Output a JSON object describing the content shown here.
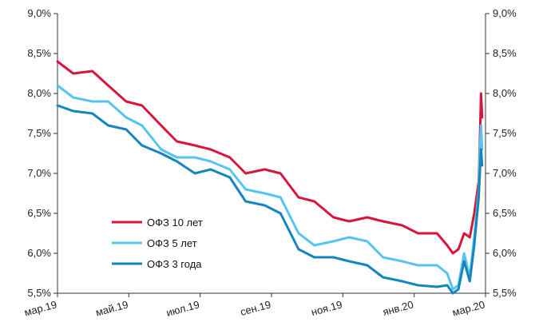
{
  "chart_data": {
    "type": "line",
    "title": "",
    "xlabel": "",
    "ylabel": "",
    "ylim": [
      5.5,
      9.0
    ],
    "yticks": [
      "9,0%",
      "8,5%",
      "8,0%",
      "7,5%",
      "7,0%",
      "6,5%",
      "6,0%",
      "5,5%"
    ],
    "ytick_values": [
      9.0,
      8.5,
      8.0,
      7.5,
      7.0,
      6.5,
      6.0,
      5.5
    ],
    "secondary_y_axis": true,
    "xticks": [
      "мар.19",
      "май.19",
      "июл.19",
      "сен.19",
      "ноя.19",
      "янв.20",
      "мар.20"
    ],
    "xlim": [
      "2019-03-01",
      "2020-03-15"
    ],
    "grid": false,
    "legend_position": "center-left",
    "x": [
      "2019-03-01",
      "2019-03-15",
      "2019-04-01",
      "2019-04-15",
      "2019-05-01",
      "2019-05-15",
      "2019-06-01",
      "2019-06-15",
      "2019-07-01",
      "2019-07-15",
      "2019-08-01",
      "2019-08-15",
      "2019-09-01",
      "2019-09-15",
      "2019-10-01",
      "2019-10-15",
      "2019-11-01",
      "2019-11-15",
      "2019-12-01",
      "2019-12-15",
      "2020-01-01",
      "2020-01-15",
      "2020-02-01",
      "2020-02-10",
      "2020-02-15",
      "2020-02-20",
      "2020-02-25",
      "2020-03-01",
      "2020-03-05",
      "2020-03-09",
      "2020-03-10",
      "2020-03-11",
      "2020-03-12"
    ],
    "series": [
      {
        "name": "ОФЗ 10 лет",
        "color": "#d6163c",
        "values": [
          8.4,
          8.25,
          8.28,
          8.1,
          7.9,
          7.85,
          7.6,
          7.4,
          7.35,
          7.3,
          7.2,
          7.0,
          7.05,
          7.0,
          6.7,
          6.65,
          6.45,
          6.4,
          6.45,
          6.4,
          6.35,
          6.25,
          6.25,
          6.1,
          6.0,
          6.05,
          6.25,
          6.2,
          6.5,
          6.9,
          7.4,
          8.0,
          7.7
        ]
      },
      {
        "name": "ОФЗ 5 лет",
        "color": "#56c4ee",
        "values": [
          8.1,
          7.95,
          7.9,
          7.9,
          7.7,
          7.6,
          7.3,
          7.2,
          7.2,
          7.15,
          7.05,
          6.8,
          6.75,
          6.7,
          6.25,
          6.1,
          6.15,
          6.2,
          6.15,
          5.95,
          5.9,
          5.85,
          5.85,
          5.75,
          5.55,
          5.6,
          6.0,
          5.7,
          6.2,
          6.8,
          7.3,
          7.6,
          7.3
        ]
      },
      {
        "name": "ОФЗ 3 года",
        "color": "#1585be",
        "values": [
          7.85,
          7.78,
          7.75,
          7.6,
          7.55,
          7.35,
          7.25,
          7.15,
          7.0,
          7.05,
          6.95,
          6.65,
          6.6,
          6.5,
          6.05,
          5.95,
          5.95,
          5.9,
          5.85,
          5.7,
          5.65,
          5.6,
          5.58,
          5.6,
          5.5,
          5.55,
          5.9,
          5.65,
          6.1,
          6.7,
          7.0,
          7.3,
          7.1
        ]
      }
    ]
  }
}
